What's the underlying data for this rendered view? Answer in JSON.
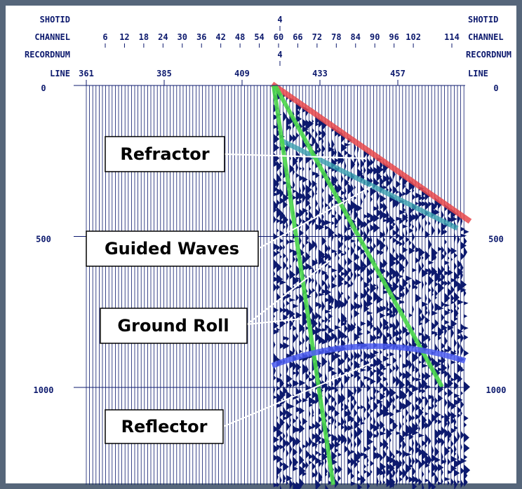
{
  "header": {
    "left_labels": [
      "SHOTID",
      "CHANNEL",
      "RECORDNUM",
      "LINE"
    ],
    "right_labels": [
      "SHOTID",
      "CHANNEL",
      "RECORDNUM",
      "LINE"
    ],
    "shotid": "4",
    "recordnum": "4",
    "channels": [
      6,
      12,
      18,
      24,
      30,
      36,
      42,
      48,
      54,
      60,
      66,
      72,
      78,
      84,
      90,
      96,
      102,
      114
    ],
    "lines": [
      361,
      385,
      409,
      433,
      457
    ]
  },
  "time_axis": {
    "ticks": [
      0,
      500,
      1000
    ]
  },
  "annotations": [
    "Refractor",
    "Guided Waves",
    "Ground Roll",
    "Reflector"
  ]
}
